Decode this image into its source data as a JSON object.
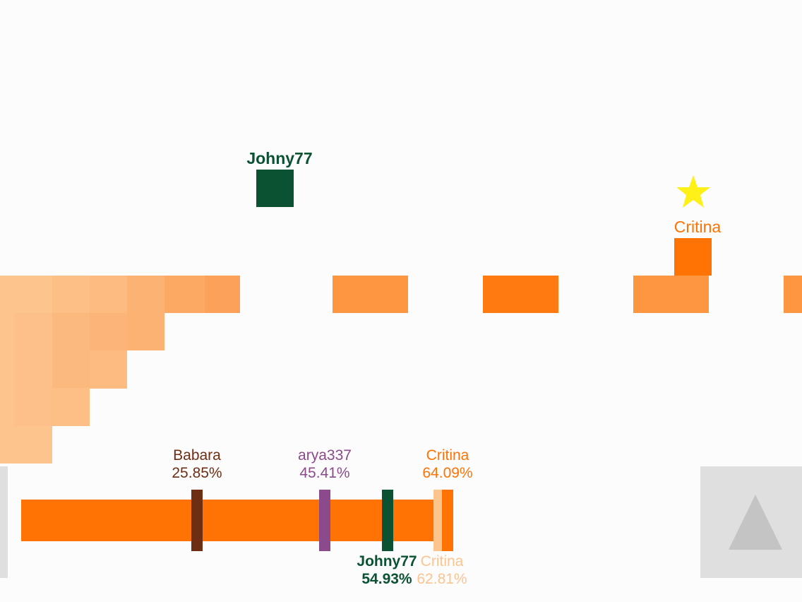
{
  "colors": {
    "background": "#fdfcfd",
    "orange": "#ff7304",
    "orange_mid": "#fc9641",
    "orange_light": "#fdc48e",
    "johny_green": "#0a5232",
    "babara_brown": "#6e2e14",
    "arya_purple": "#8a4a8c",
    "critina_ghost": "#fdc48e",
    "star_yellow": "#fff018",
    "button_gray": "#e0dfe0",
    "arrow_gray": "#c5c4c5"
  },
  "players": {
    "johny": {
      "name": "Johny77"
    },
    "critina": {
      "name": "Critina",
      "icon": "star-icon"
    }
  },
  "progress": {
    "fill_percent": 62.81,
    "markers": [
      {
        "name": "Babara",
        "percent_text": "25.85%",
        "percent": 25.85
      },
      {
        "name": "arya337",
        "percent_text": "45.41%",
        "percent": 45.41
      },
      {
        "name": "Johny77",
        "percent_text": "54.93%",
        "percent": 54.93
      },
      {
        "name": "Critina",
        "percent_text": "64.09%",
        "percent": 64.09
      },
      {
        "name": "Critina",
        "percent_text": "62.81%",
        "percent": 62.81
      }
    ]
  },
  "controls": {
    "jump_button": {
      "icon": "up-triangle-icon"
    }
  }
}
